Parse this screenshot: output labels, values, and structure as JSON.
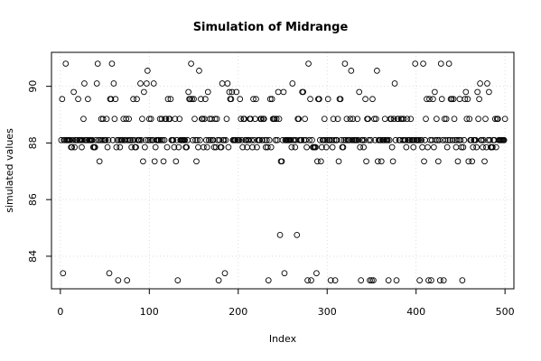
{
  "chart_data": {
    "type": "scatter",
    "title": "Simulation of Midrange",
    "xlabel": "Index",
    "ylabel": "simulated values",
    "xlim": [
      -10,
      510
    ],
    "ylim": [
      82.85,
      91.2
    ],
    "xticks": [
      0,
      100,
      200,
      300,
      400,
      500
    ],
    "yticks": [
      84,
      86,
      88,
      90
    ],
    "grid": true,
    "marker": "open-circle",
    "marker_color": "#000000",
    "grid_color": "#d3d3d3",
    "n_points": 500,
    "levels": [
      83.15,
      83.4,
      84.75,
      87.35,
      87.85,
      88.1,
      88.85,
      89.55,
      89.8,
      90.1,
      90.55,
      90.8
    ],
    "level_weights": [
      10,
      2,
      1,
      30,
      60,
      220,
      90,
      40,
      20,
      12,
      3,
      4
    ],
    "notable_points": [
      {
        "x": 3,
        "y": 83.4
      },
      {
        "x": 6,
        "y": 90.8
      },
      {
        "x": 27,
        "y": 90.1
      },
      {
        "x": 55,
        "y": 83.4
      },
      {
        "x": 58,
        "y": 90.8
      },
      {
        "x": 98,
        "y": 90.55
      },
      {
        "x": 132,
        "y": 83.15
      },
      {
        "x": 147,
        "y": 90.8
      },
      {
        "x": 266,
        "y": 84.75
      },
      {
        "x": 278,
        "y": 83.15
      },
      {
        "x": 304,
        "y": 83.15
      },
      {
        "x": 348,
        "y": 83.15
      },
      {
        "x": 350,
        "y": 83.15
      },
      {
        "x": 378,
        "y": 83.15
      },
      {
        "x": 427,
        "y": 83.15
      },
      {
        "x": 431,
        "y": 83.15
      },
      {
        "x": 437,
        "y": 90.8
      },
      {
        "x": 452,
        "y": 83.15
      }
    ]
  }
}
